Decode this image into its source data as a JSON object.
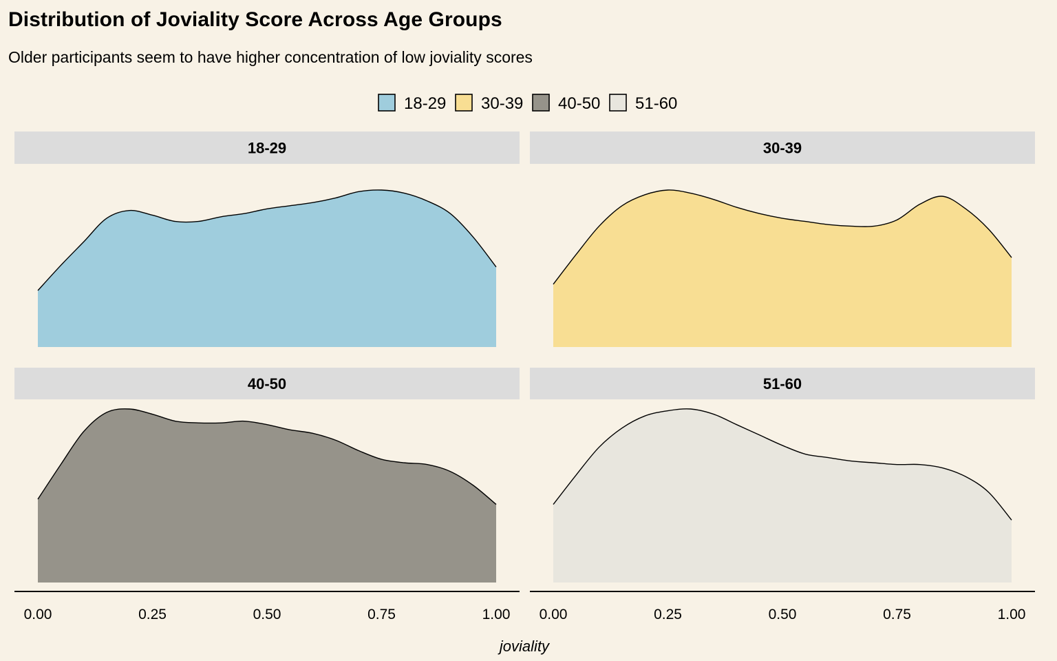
{
  "chart_data": {
    "type": "area",
    "title": "Distribution of Joviality Score Across Age Groups",
    "subtitle": "Older participants seem to have higher concentration of low joviality scores",
    "xlabel": "joviality",
    "ylabel": "",
    "xlim": [
      0,
      1
    ],
    "x_ticks": [
      "0.00",
      "0.25",
      "0.50",
      "0.75",
      "1.00"
    ],
    "legend_position": "top",
    "facet_layout": "2x2",
    "grid": false,
    "legend": [
      {
        "label": "18-29",
        "color": "#9fcddd"
      },
      {
        "label": "30-39",
        "color": "#f8de93"
      },
      {
        "label": "40-50",
        "color": "#96938a"
      },
      {
        "label": "51-60",
        "color": "#e8e6de"
      }
    ],
    "x": [
      0,
      0.05,
      0.1,
      0.15,
      0.2,
      0.25,
      0.3,
      0.35,
      0.4,
      0.45,
      0.5,
      0.55,
      0.6,
      0.65,
      0.7,
      0.75,
      0.8,
      0.85,
      0.9,
      0.95,
      1
    ],
    "series": [
      {
        "name": "18-29",
        "color": "#9fcddd",
        "values": [
          0.36,
          0.52,
          0.67,
          0.82,
          0.87,
          0.84,
          0.8,
          0.8,
          0.83,
          0.85,
          0.88,
          0.9,
          0.92,
          0.95,
          0.99,
          1.0,
          0.98,
          0.93,
          0.85,
          0.7,
          0.51
        ]
      },
      {
        "name": "30-39",
        "color": "#f8de93",
        "values": [
          0.4,
          0.59,
          0.77,
          0.9,
          0.97,
          1.0,
          0.98,
          0.94,
          0.89,
          0.85,
          0.82,
          0.8,
          0.78,
          0.77,
          0.77,
          0.81,
          0.91,
          0.96,
          0.88,
          0.75,
          0.57
        ]
      },
      {
        "name": "40-50",
        "color": "#96938a",
        "values": [
          0.48,
          0.68,
          0.87,
          0.98,
          1.0,
          0.97,
          0.93,
          0.92,
          0.92,
          0.93,
          0.91,
          0.88,
          0.86,
          0.82,
          0.76,
          0.71,
          0.69,
          0.68,
          0.64,
          0.56,
          0.45
        ]
      },
      {
        "name": "51-60",
        "color": "#e8e6de",
        "values": [
          0.45,
          0.62,
          0.78,
          0.89,
          0.96,
          0.99,
          1.0,
          0.97,
          0.91,
          0.85,
          0.79,
          0.74,
          0.72,
          0.7,
          0.69,
          0.68,
          0.68,
          0.66,
          0.61,
          0.52,
          0.36
        ]
      }
    ]
  }
}
